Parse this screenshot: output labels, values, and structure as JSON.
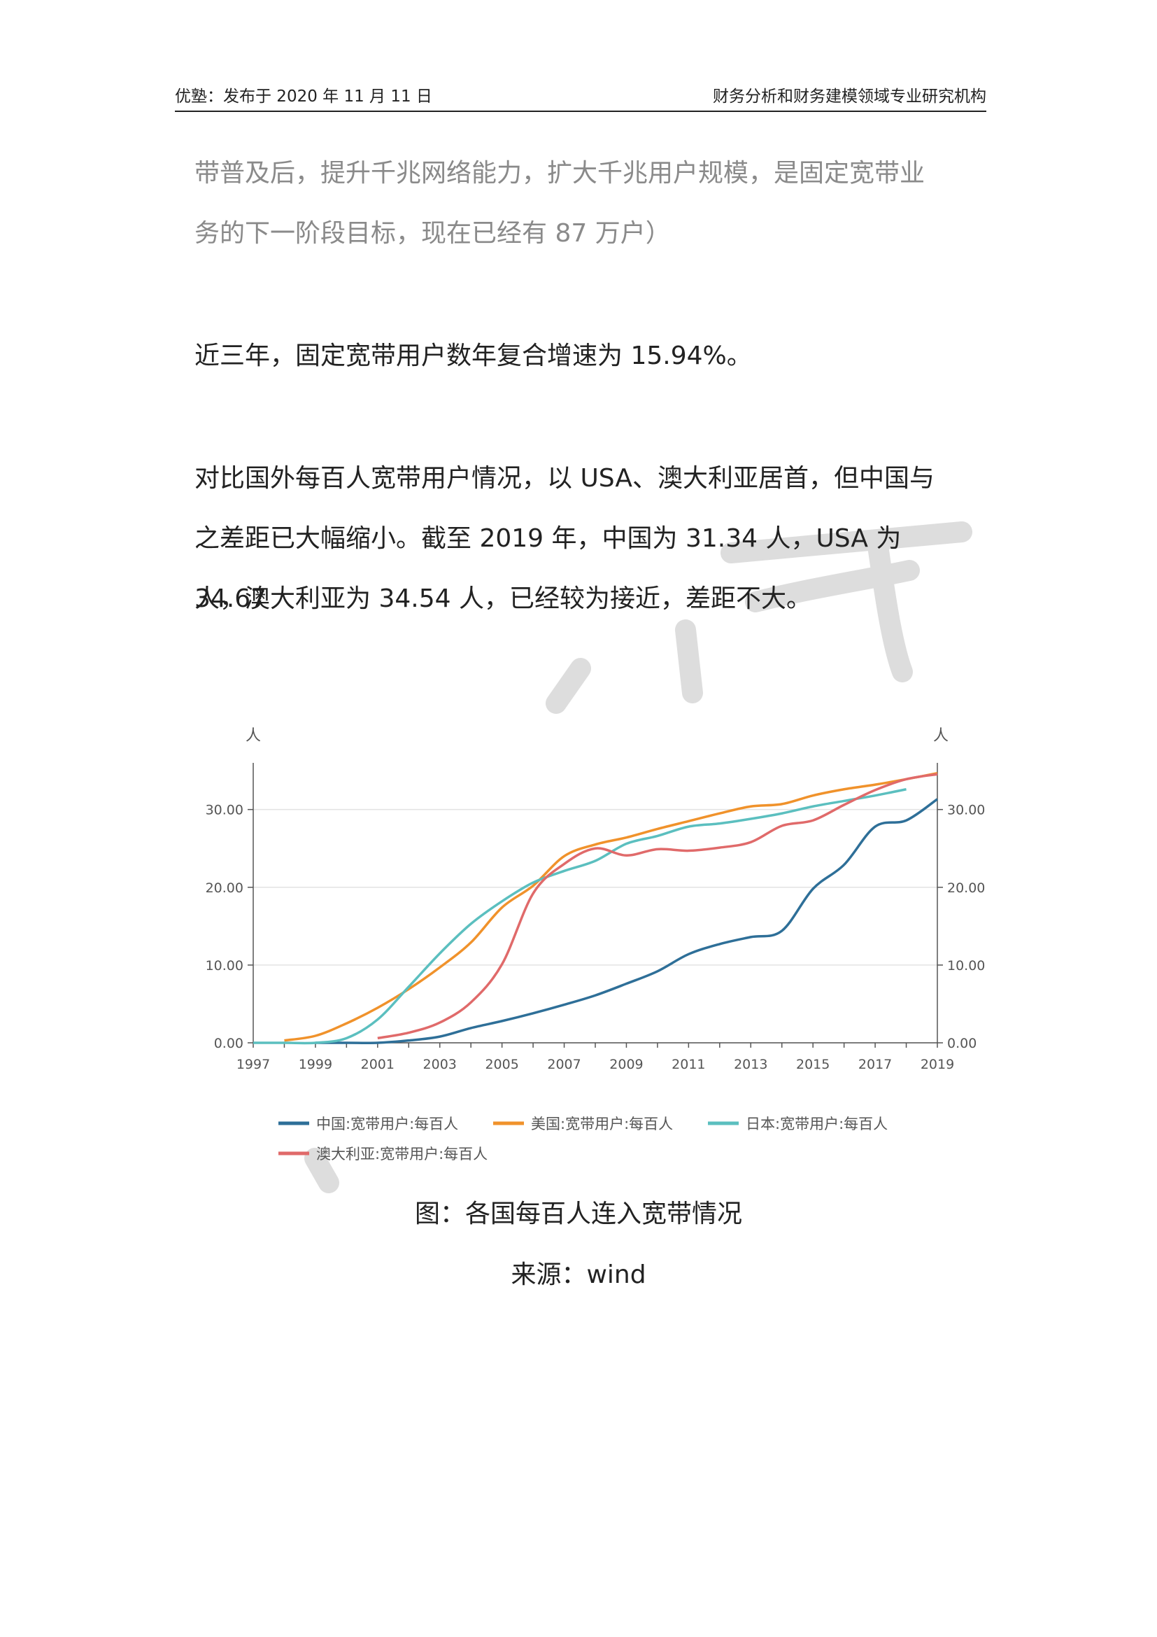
{
  "header": {
    "left": "优塾：发布于 2020 年 11 月 11 日",
    "right": "财务分析和财务建模领域专业研究机构"
  },
  "paragraphs": {
    "p1_line1": "带普及后，提升千兆网络能力，扩大千兆用户规模，是固定宽带业",
    "p1_line2": "务的下一阶段目标，现在已经有 87 万户）",
    "p2": "近三年，固定宽带用户数年复合增速为 15.94%。",
    "p3_line1": "对比国外每百人宽带用户情况，以 USA、澳大利亚居首，但中国与",
    "p3_line2": "之差距已大幅缩小。截至 2019 年，中国为 31.34 人，USA 为 34.67",
    "p3_line3": "人，澳大利亚为 34.54 人，已经较为接近，差距不大。"
  },
  "chart_data": {
    "type": "line",
    "ylabel_left": "人",
    "ylabel_right": "人",
    "ylim": [
      0,
      36
    ],
    "yticks": [
      "0.00",
      "10.00",
      "20.00",
      "30.00"
    ],
    "xticks": [
      "1997",
      "1999",
      "2001",
      "2003",
      "2005",
      "2007",
      "2009",
      "2011",
      "2013",
      "2015",
      "2017",
      "2019"
    ],
    "grid": true,
    "legend_position": "bottom",
    "series": [
      {
        "name": "中国:宽带用户:每百人",
        "color": "#2e6f98",
        "x": [
          1999,
          2000,
          2001,
          2002,
          2003,
          2004,
          2005,
          2006,
          2007,
          2008,
          2009,
          2010,
          2011,
          2012,
          2013,
          2014,
          2015,
          2016,
          2017,
          2018,
          2019
        ],
        "y": [
          0.0,
          0.0,
          0.0,
          0.3,
          0.8,
          1.9,
          2.8,
          3.8,
          4.9,
          6.1,
          7.6,
          9.2,
          11.4,
          12.7,
          13.6,
          14.4,
          19.8,
          22.9,
          27.8,
          28.6,
          31.34
        ]
      },
      {
        "name": "美国:宽带用户:每百人",
        "color": "#f0922b",
        "x": [
          1998,
          1999,
          2000,
          2001,
          2002,
          2003,
          2004,
          2005,
          2006,
          2007,
          2008,
          2009,
          2010,
          2011,
          2012,
          2013,
          2014,
          2015,
          2016,
          2017,
          2018,
          2019
        ],
        "y": [
          0.3,
          0.9,
          2.5,
          4.5,
          6.9,
          9.7,
          12.9,
          17.4,
          20.2,
          24.0,
          25.5,
          26.4,
          27.5,
          28.5,
          29.5,
          30.4,
          30.7,
          31.8,
          32.6,
          33.2,
          33.9,
          34.67
        ]
      },
      {
        "name": "日本:宽带用户:每百人",
        "color": "#5bbfbf",
        "x": [
          1997,
          1998,
          1999,
          2000,
          2001,
          2002,
          2003,
          2004,
          2005,
          2006,
          2007,
          2008,
          2009,
          2010,
          2011,
          2012,
          2013,
          2014,
          2015,
          2016,
          2017,
          2018
        ],
        "y": [
          0.0,
          0.0,
          0.0,
          0.6,
          3.0,
          7.2,
          11.5,
          15.3,
          18.2,
          20.6,
          22.1,
          23.4,
          25.6,
          26.6,
          27.8,
          28.2,
          28.8,
          29.5,
          30.4,
          31.1,
          31.8,
          32.6
        ]
      },
      {
        "name": "澳大利亚:宽带用户:每百人",
        "color": "#e06a6a",
        "x": [
          2001,
          2002,
          2003,
          2004,
          2005,
          2006,
          2007,
          2008,
          2009,
          2010,
          2011,
          2012,
          2013,
          2014,
          2015,
          2016,
          2017,
          2018,
          2019
        ],
        "y": [
          0.6,
          1.3,
          2.6,
          5.2,
          10.1,
          19.2,
          23.0,
          25.0,
          24.1,
          24.9,
          24.7,
          25.1,
          25.8,
          27.9,
          28.6,
          30.6,
          32.5,
          33.9,
          34.54
        ]
      }
    ]
  },
  "caption": {
    "title": "图：各国每百人连入宽带情况",
    "source": "来源：wind"
  },
  "watermark": {
    "text": "研究",
    "color": "#dcdcdc"
  }
}
